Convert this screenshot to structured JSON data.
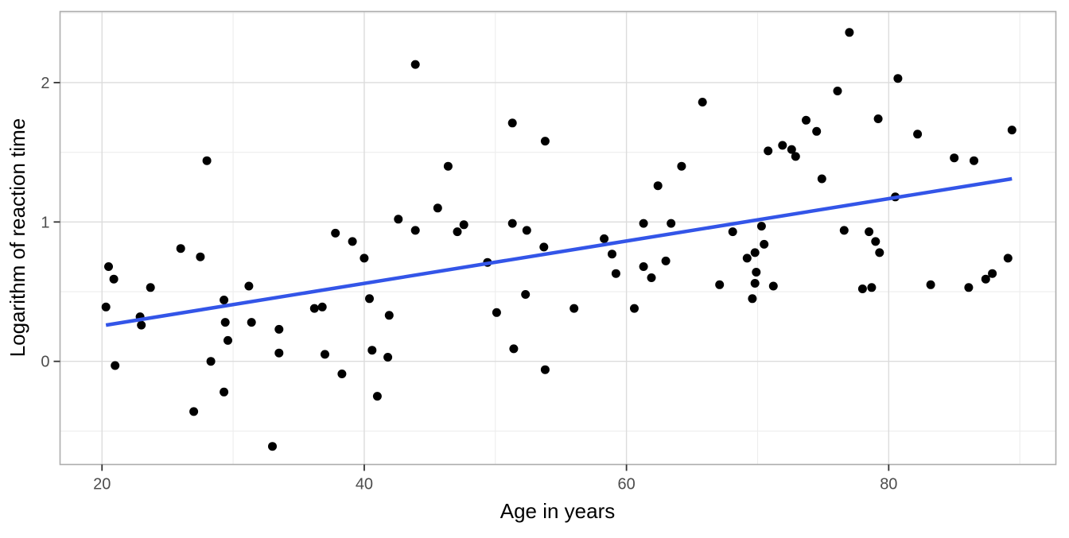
{
  "figure": {
    "background": "#FFFFFF",
    "panel_background": "#FFFFFF",
    "panel_border_color": "#ADADAD",
    "grid_major_color": "#DCDCDC",
    "grid_minor_color": "#EDEDED",
    "tick_mark_color": "#333333",
    "tick_label_color": "#4D4D4D",
    "axis_title_color": "#000000"
  },
  "chart_data": {
    "type": "scatter",
    "title": "",
    "xlabel": "Age in years",
    "ylabel": "Logarithm of reaction time",
    "x_ticks": [
      20,
      40,
      60,
      80
    ],
    "y_ticks": [
      0,
      1,
      2
    ],
    "x_minor_ticks": [
      30,
      50,
      70,
      90
    ],
    "y_minor_ticks": [
      -0.5,
      0.5,
      1.5,
      2.5
    ],
    "xlim": [
      16.8,
      92.75
    ],
    "ylim": [
      -0.74,
      2.51
    ],
    "grid": true,
    "legend_position": "none",
    "point_color": "#000000",
    "point_radius": 5.5,
    "smooth_line": {
      "color": "#3355E8",
      "stroke_width": 4.5,
      "x1": 20.3,
      "y1": 0.26,
      "x2": 89.4,
      "y2": 1.31
    },
    "points": [
      [
        20.3,
        0.39
      ],
      [
        20.5,
        0.68
      ],
      [
        20.9,
        0.59
      ],
      [
        21.0,
        -0.03
      ],
      [
        22.9,
        0.32
      ],
      [
        23.0,
        0.26
      ],
      [
        23.7,
        0.53
      ],
      [
        26.0,
        0.81
      ],
      [
        27.0,
        -0.36
      ],
      [
        27.5,
        0.75
      ],
      [
        28.0,
        1.44
      ],
      [
        28.3,
        0.0
      ],
      [
        29.3,
        0.44
      ],
      [
        29.3,
        -0.22
      ],
      [
        29.4,
        0.28
      ],
      [
        29.6,
        0.15
      ],
      [
        31.2,
        0.54
      ],
      [
        31.4,
        0.28
      ],
      [
        33.0,
        -0.61
      ],
      [
        33.5,
        0.23
      ],
      [
        33.5,
        0.06
      ],
      [
        36.2,
        0.38
      ],
      [
        36.8,
        0.39
      ],
      [
        37.0,
        0.05
      ],
      [
        37.8,
        0.92
      ],
      [
        38.3,
        -0.09
      ],
      [
        39.1,
        0.86
      ],
      [
        40.0,
        0.74
      ],
      [
        40.4,
        0.45
      ],
      [
        40.6,
        0.08
      ],
      [
        41.0,
        -0.25
      ],
      [
        41.8,
        0.03
      ],
      [
        41.9,
        0.33
      ],
      [
        42.6,
        1.02
      ],
      [
        43.9,
        2.13
      ],
      [
        43.9,
        0.94
      ],
      [
        45.6,
        1.1
      ],
      [
        46.4,
        1.4
      ],
      [
        47.1,
        0.93
      ],
      [
        47.6,
        0.98
      ],
      [
        49.4,
        0.71
      ],
      [
        50.1,
        0.35
      ],
      [
        51.3,
        1.71
      ],
      [
        51.3,
        0.99
      ],
      [
        51.4,
        0.09
      ],
      [
        52.3,
        0.48
      ],
      [
        52.4,
        0.94
      ],
      [
        53.7,
        0.82
      ],
      [
        53.8,
        1.58
      ],
      [
        53.8,
        -0.06
      ],
      [
        56.0,
        0.38
      ],
      [
        58.3,
        0.88
      ],
      [
        58.9,
        0.77
      ],
      [
        59.2,
        0.63
      ],
      [
        60.6,
        0.38
      ],
      [
        61.3,
        0.99
      ],
      [
        61.3,
        0.68
      ],
      [
        61.9,
        0.6
      ],
      [
        62.4,
        1.26
      ],
      [
        63.0,
        0.72
      ],
      [
        63.4,
        0.99
      ],
      [
        64.2,
        1.4
      ],
      [
        65.8,
        1.86
      ],
      [
        67.1,
        0.55
      ],
      [
        68.1,
        0.93
      ],
      [
        69.2,
        0.74
      ],
      [
        69.6,
        0.45
      ],
      [
        69.8,
        0.78
      ],
      [
        69.8,
        0.56
      ],
      [
        69.9,
        0.64
      ],
      [
        70.3,
        0.97
      ],
      [
        70.5,
        0.84
      ],
      [
        70.8,
        1.51
      ],
      [
        71.2,
        0.54
      ],
      [
        71.9,
        1.55
      ],
      [
        72.6,
        1.52
      ],
      [
        72.9,
        1.47
      ],
      [
        73.7,
        1.73
      ],
      [
        74.5,
        1.65
      ],
      [
        74.9,
        1.31
      ],
      [
        76.1,
        1.94
      ],
      [
        76.6,
        0.94
      ],
      [
        77.0,
        2.36
      ],
      [
        78.0,
        0.52
      ],
      [
        78.5,
        0.93
      ],
      [
        78.7,
        0.53
      ],
      [
        79.0,
        0.86
      ],
      [
        79.2,
        1.74
      ],
      [
        79.3,
        0.78
      ],
      [
        80.5,
        1.18
      ],
      [
        80.7,
        2.03
      ],
      [
        82.2,
        1.63
      ],
      [
        83.2,
        0.55
      ],
      [
        85.0,
        1.46
      ],
      [
        86.1,
        0.53
      ],
      [
        86.5,
        1.44
      ],
      [
        87.4,
        0.59
      ],
      [
        87.9,
        0.63
      ],
      [
        89.1,
        0.74
      ],
      [
        89.4,
        1.66
      ]
    ]
  }
}
